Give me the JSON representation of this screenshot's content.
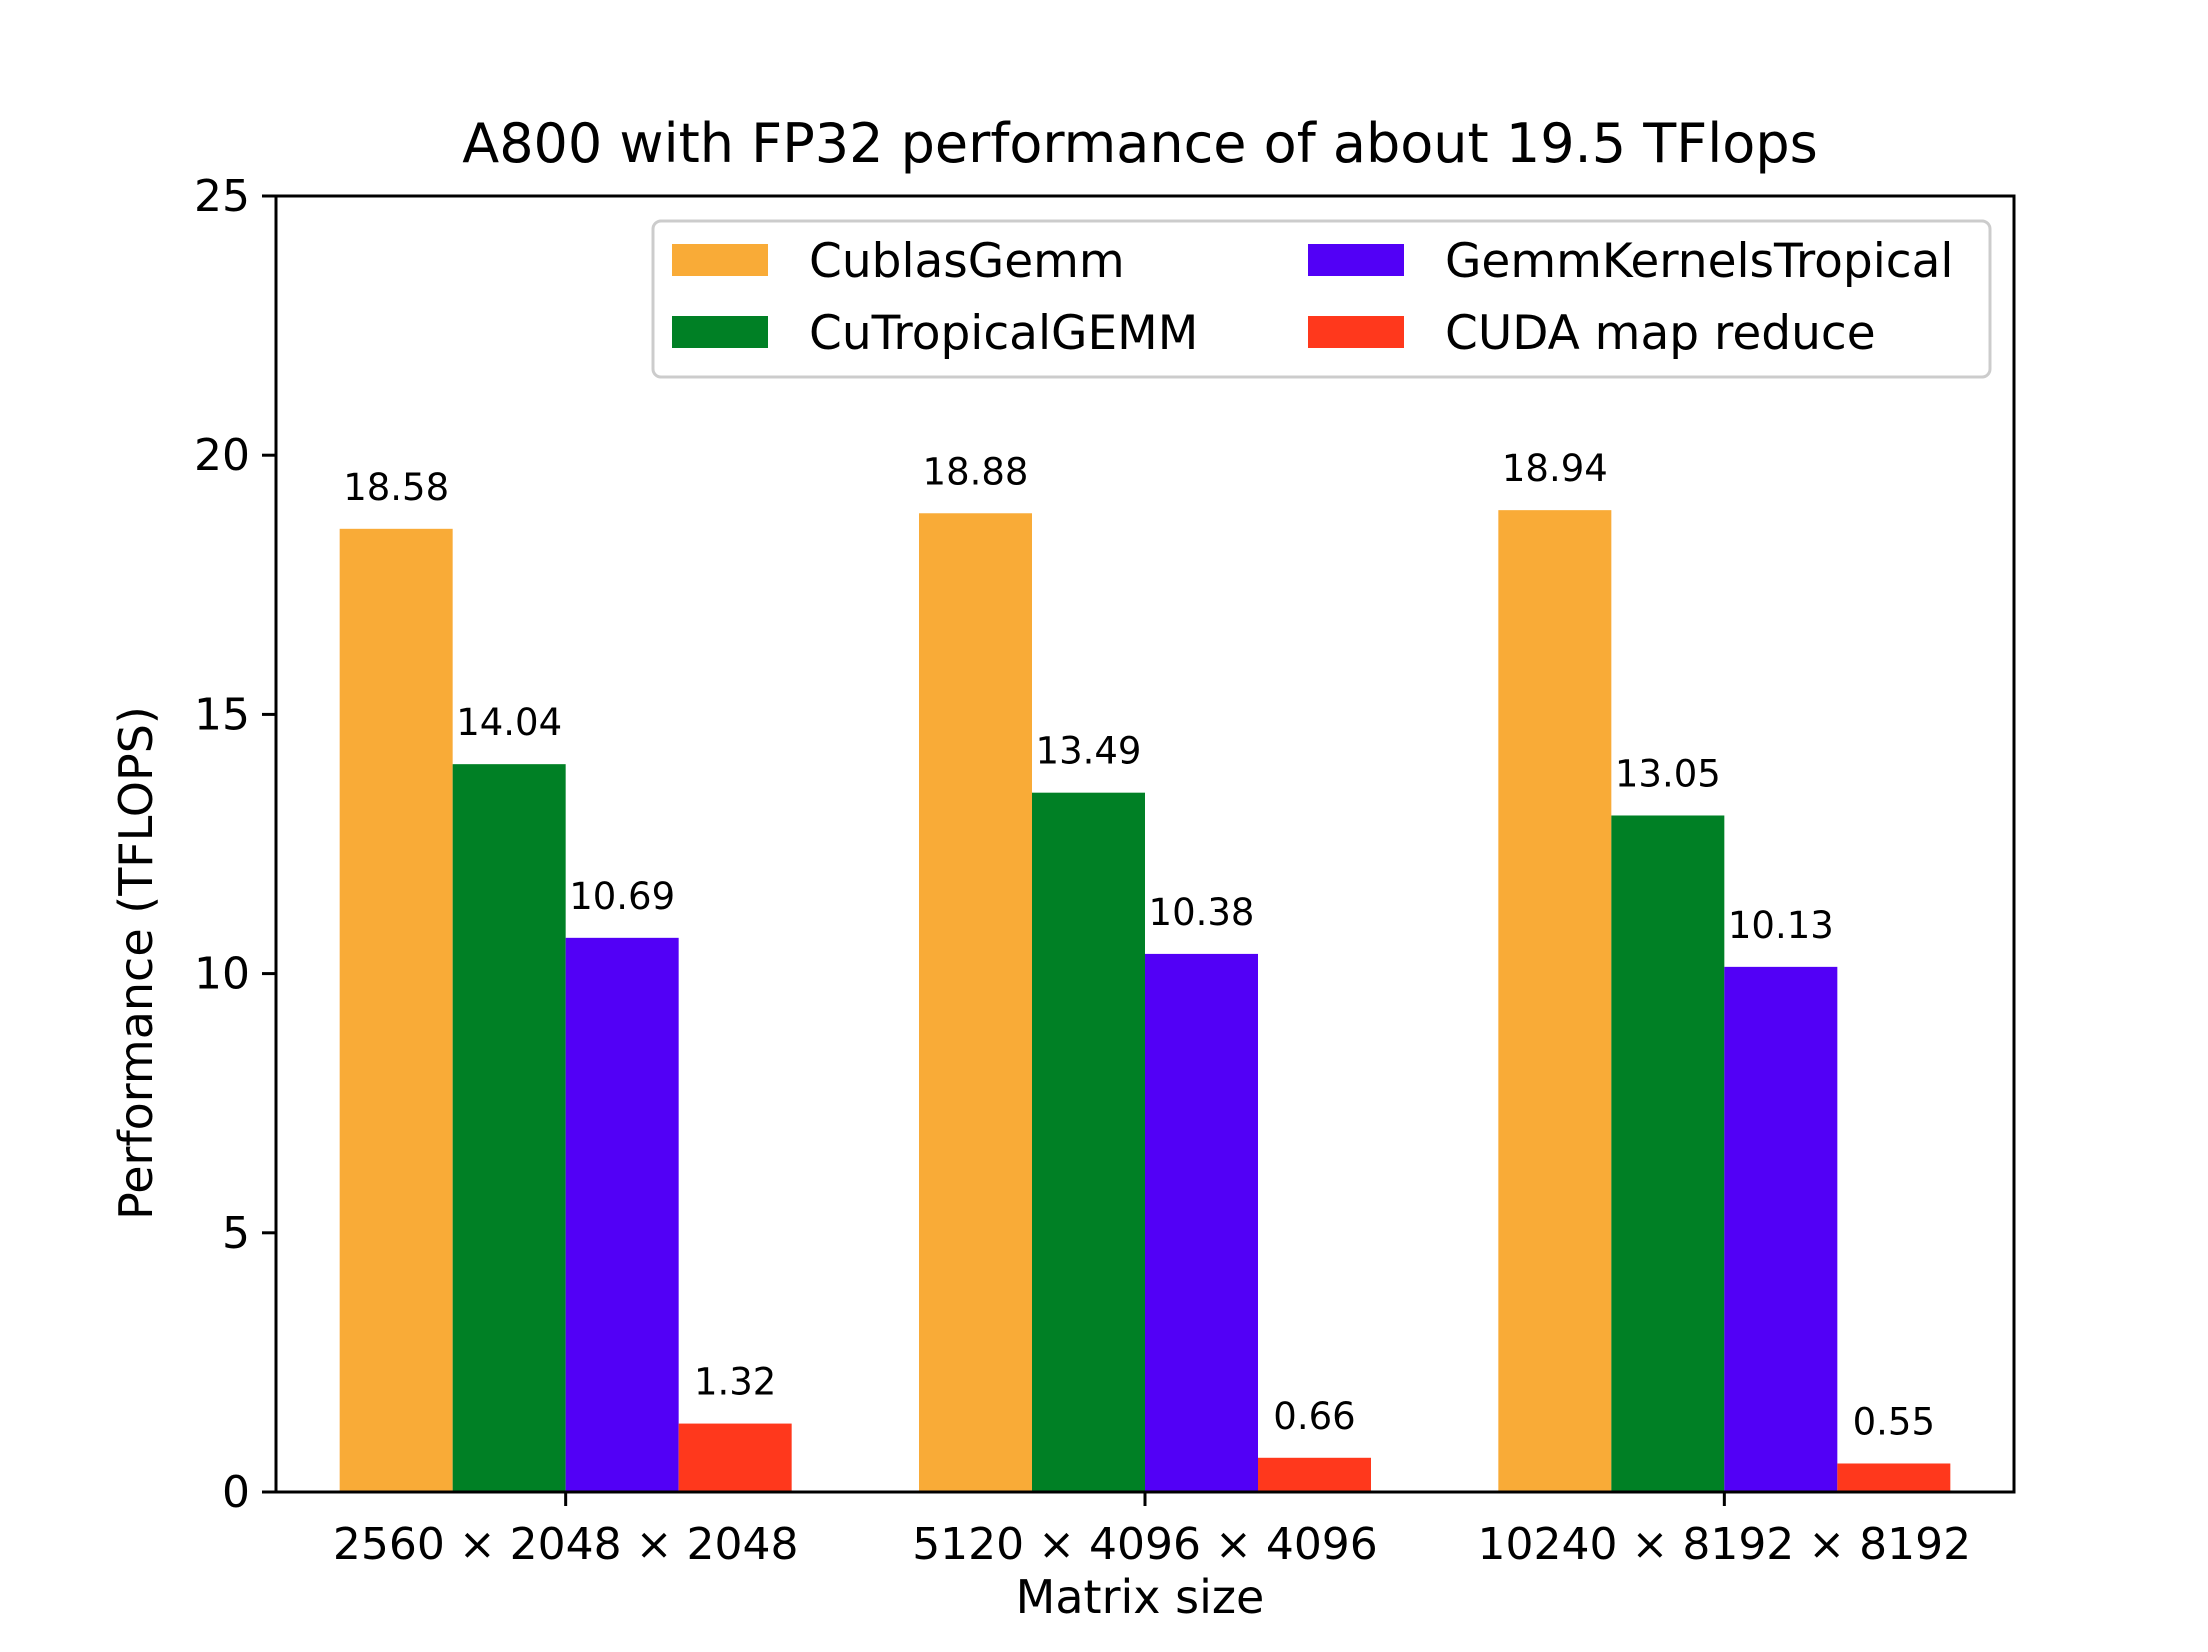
{
  "chart_data": {
    "type": "bar",
    "title": "A800 with FP32 performance of about 19.5 TFlops",
    "xlabel": "Matrix size",
    "ylabel": "Performance (TFLOPS)",
    "categories": [
      "2560 × 2048 × 2048",
      "5120 × 4096 × 4096",
      "10240 × 8192 × 8192"
    ],
    "ylim": [
      0,
      25
    ],
    "yticks": [
      0,
      5,
      10,
      15,
      20,
      25
    ],
    "grid": false,
    "legend_position": "top-right",
    "legend_columns": 2,
    "series": [
      {
        "name": "CublasGemm",
        "color": "#F9AB37",
        "values": [
          18.58,
          18.88,
          18.94
        ],
        "labels": [
          "18.58",
          "18.88",
          "18.94"
        ]
      },
      {
        "name": "CuTropicalGEMM",
        "color": "#008025",
        "values": [
          14.04,
          13.49,
          13.05
        ],
        "labels": [
          "14.04",
          "13.49",
          "13.05"
        ]
      },
      {
        "name": "GemmKernelsTropical",
        "color": "#5200F6",
        "values": [
          10.69,
          10.38,
          10.13
        ],
        "labels": [
          "10.69",
          "10.38",
          "10.13"
        ]
      },
      {
        "name": "CUDA map reduce",
        "color": "#FF381C",
        "values": [
          1.32,
          0.66,
          0.55
        ],
        "labels": [
          "1.32",
          "0.66",
          "0.55"
        ]
      }
    ]
  }
}
